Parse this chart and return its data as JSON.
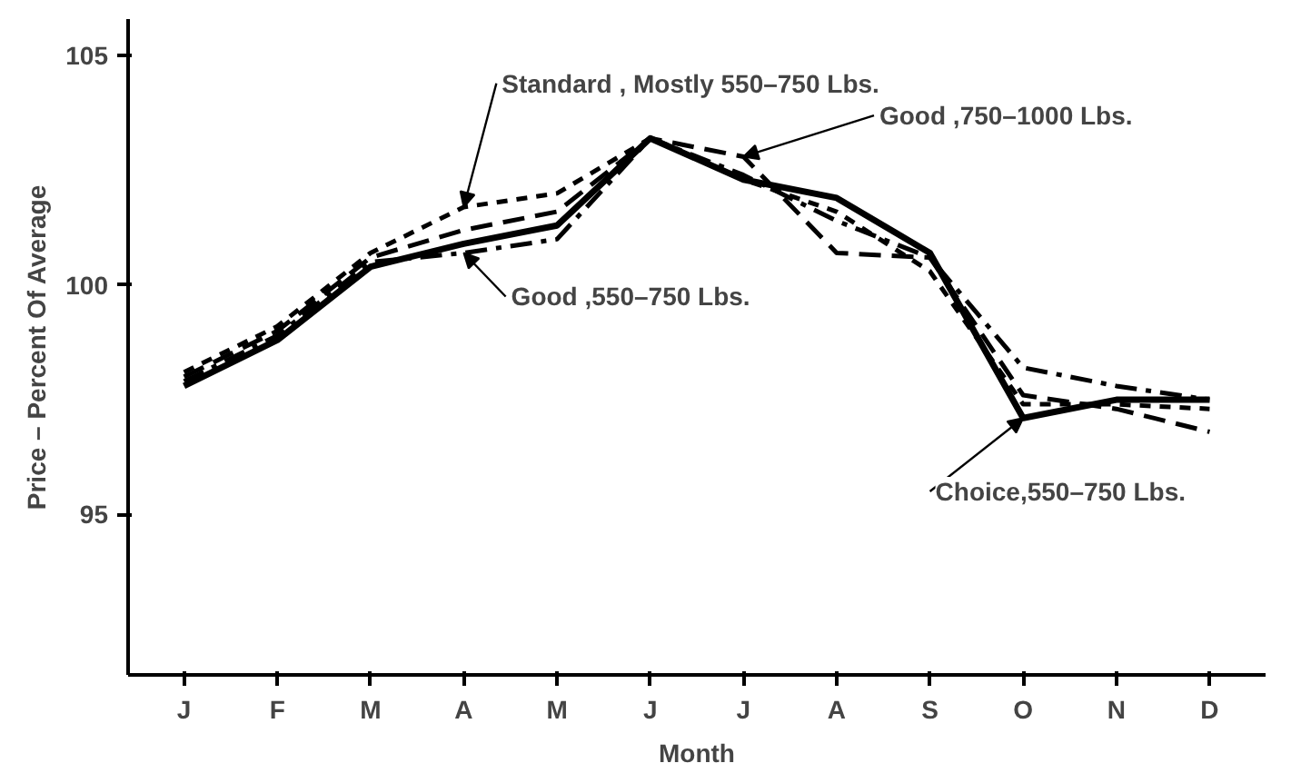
{
  "chart_data": {
    "type": "line",
    "xlabel": "Month",
    "ylabel": "Price – Percent Of Average",
    "categories": [
      "J",
      "F",
      "M",
      "A",
      "M",
      "J",
      "J",
      "A",
      "S",
      "O",
      "N",
      "D"
    ],
    "ylim": [
      91.5,
      105.8
    ],
    "yticks": [
      95,
      100,
      105
    ],
    "grid": false,
    "legend": false,
    "marker": "none",
    "series": [
      {
        "name": "Choice,550–750 Lbs.",
        "color": "#000000",
        "line_style": "solid",
        "values": [
          97.8,
          98.8,
          100.4,
          100.9,
          101.3,
          103.2,
          102.3,
          101.9,
          100.7,
          97.1,
          97.5,
          97.5
        ]
      },
      {
        "name": "Good ,550–750 Lbs.",
        "color": "#000000",
        "line_style": "dashdot",
        "values": [
          97.9,
          98.9,
          100.5,
          100.7,
          101.0,
          103.2,
          102.4,
          101.4,
          100.6,
          98.2,
          97.8,
          97.5
        ]
      },
      {
        "name": "Good ,750–1000 Lbs.",
        "color": "#000000",
        "line_style": "dashed",
        "values": [
          98.0,
          99.0,
          100.6,
          101.2,
          101.6,
          103.2,
          102.8,
          100.7,
          100.6,
          97.6,
          97.3,
          96.8
        ]
      },
      {
        "name": "Standard , Mostly 550–750 Lbs.",
        "color": "#000000",
        "line_style": "dotted",
        "values": [
          98.1,
          99.1,
          100.7,
          101.7,
          102.0,
          103.2,
          102.3,
          101.6,
          100.3,
          97.4,
          97.4,
          97.3
        ]
      }
    ]
  }
}
